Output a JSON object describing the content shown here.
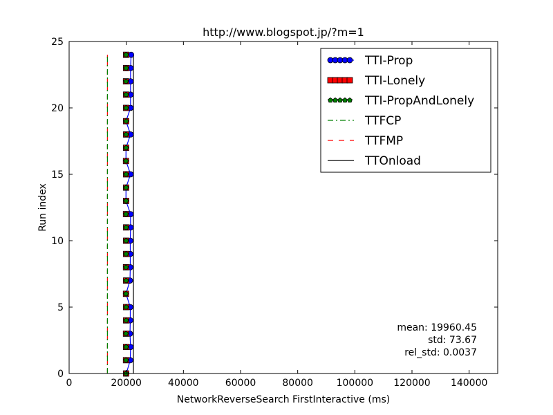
{
  "chart_data": {
    "type": "line",
    "title": "http://www.blogspot.jp/?m=1",
    "xlabel": "NetworkReverseSearch FirstInteractive (ms)",
    "ylabel": "Run index",
    "xlim": [
      0,
      150000
    ],
    "ylim": [
      0,
      25
    ],
    "xticks": [
      0,
      20000,
      40000,
      60000,
      80000,
      100000,
      120000,
      140000
    ],
    "yticks": [
      0,
      5,
      10,
      15,
      20,
      25
    ],
    "grid": false,
    "legend_position": "top-right",
    "series": [
      {
        "name": "TTI-Prop",
        "style": "line-circle",
        "color": "#0000ff",
        "y": [
          0,
          1,
          2,
          3,
          4,
          5,
          6,
          7,
          8,
          9,
          10,
          11,
          12,
          13,
          14,
          15,
          16,
          17,
          18,
          19,
          20,
          21,
          22,
          23,
          24
        ],
        "x": [
          20000,
          21400,
          21500,
          21300,
          21400,
          21400,
          19900,
          21300,
          21400,
          21400,
          21400,
          21500,
          21500,
          19900,
          19900,
          21500,
          19900,
          19900,
          21500,
          19900,
          21500,
          21500,
          21500,
          21500,
          21700
        ]
      },
      {
        "name": "TTI-Lonely",
        "style": "square",
        "color": "#ff0000",
        "y": [
          0,
          1,
          2,
          3,
          4,
          5,
          6,
          7,
          8,
          9,
          10,
          11,
          12,
          13,
          14,
          15,
          16,
          17,
          18,
          19,
          20,
          21,
          22,
          23,
          24
        ],
        "x": [
          19950,
          19900,
          19950,
          19900,
          19950,
          19950,
          19900,
          19950,
          19900,
          19950,
          19950,
          19950,
          19900,
          19950,
          19950,
          19950,
          19900,
          19950,
          19950,
          19950,
          19950,
          19950,
          19900,
          19950,
          19950
        ]
      },
      {
        "name": "TTI-PropAndLonely",
        "style": "pentagon",
        "color": "#008000",
        "y": [
          0,
          1,
          2,
          3,
          4,
          5,
          6,
          7,
          8,
          9,
          10,
          11,
          12,
          13,
          14,
          15,
          16,
          17,
          18,
          19,
          20,
          21,
          22,
          23,
          24
        ],
        "x": [
          19950,
          19900,
          19950,
          19900,
          19950,
          19950,
          19900,
          19950,
          19900,
          19950,
          19950,
          19950,
          19900,
          19950,
          19950,
          19950,
          19900,
          19950,
          19950,
          19950,
          19950,
          19950,
          19900,
          19950,
          19950
        ]
      },
      {
        "name": "TTFCP",
        "style": "dashdot",
        "color": "#008000",
        "x": [
          13400,
          13400
        ],
        "y": [
          0,
          24
        ]
      },
      {
        "name": "TTFMP",
        "style": "dashed",
        "color": "#ff0000",
        "x": [
          13400,
          13400
        ],
        "y": [
          0,
          24
        ]
      },
      {
        "name": "TTOnload",
        "style": "solid",
        "color": "#000000",
        "x": [
          22500,
          22500
        ],
        "y": [
          0,
          24
        ]
      }
    ],
    "annotations": {
      "mean": "mean: 19960.45",
      "std": "std: 73.67",
      "rel_std": "rel_std: 0.0037"
    }
  }
}
